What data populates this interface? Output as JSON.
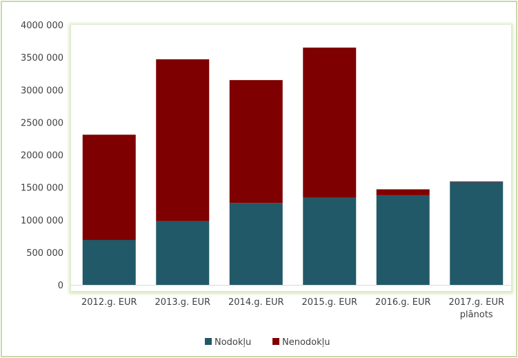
{
  "chart_data": {
    "type": "bar",
    "stacked": true,
    "categories": [
      "2012.g. EUR",
      "2013.g. EUR",
      "2014.g. EUR",
      "2015.g. EUR",
      "2016.g. EUR",
      "2017.g. EUR plānots"
    ],
    "series": [
      {
        "name": "Nodokļu",
        "color": "#215968",
        "values": [
          690000,
          980000,
          1260000,
          1340000,
          1380000,
          1580000
        ]
      },
      {
        "name": "Nenodokļu",
        "color": "#7f0000",
        "values": [
          1620000,
          2490000,
          1890000,
          2310000,
          90000,
          10000
        ]
      }
    ],
    "ylim": [
      0,
      4000000
    ],
    "yticks": [
      "0",
      "500 000",
      "1000 000",
      "1500 000",
      "2000 000",
      "2500 000",
      "3000 000",
      "3500 000",
      "4000 000"
    ],
    "grid": false,
    "legend_position": "bottom",
    "title": "",
    "xlabel": "",
    "ylabel": ""
  }
}
